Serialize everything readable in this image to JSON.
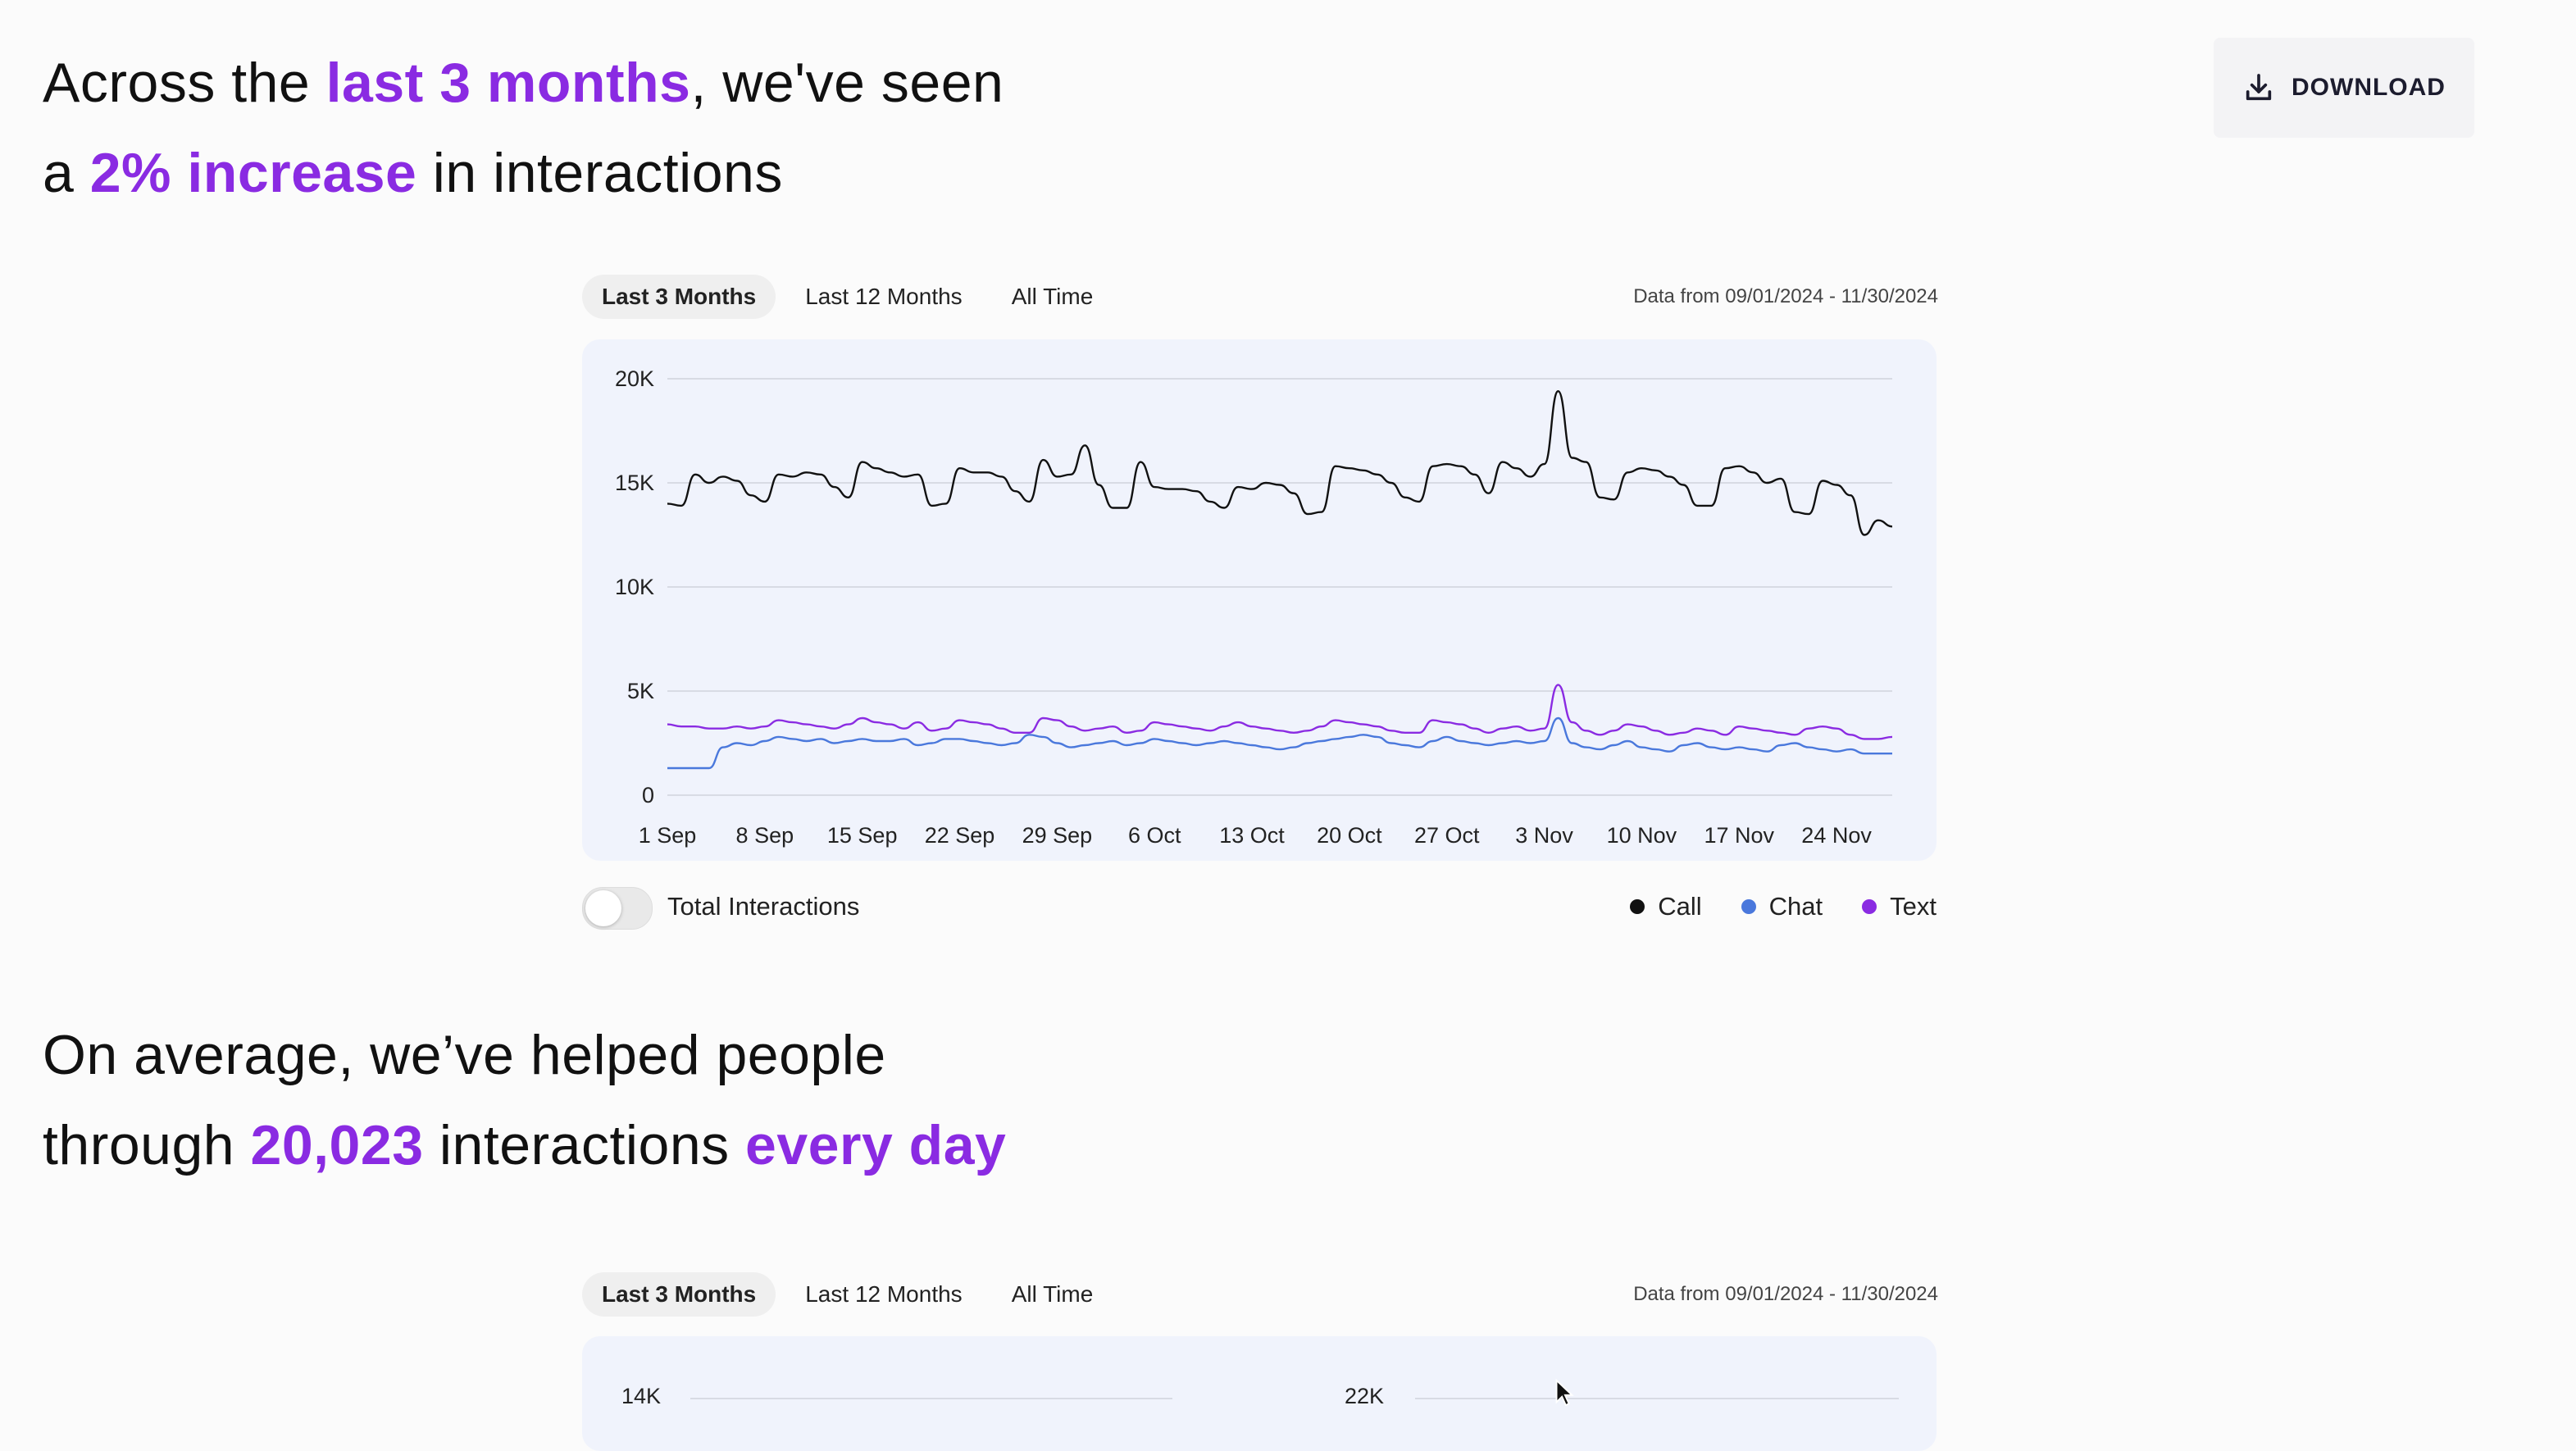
{
  "download": {
    "label": "DOWNLOAD",
    "icon": "download-icon"
  },
  "headline1": {
    "p1": "Across the ",
    "h1": "last 3 months",
    "p2": ", we've seen",
    "p3": "a ",
    "h2": "2% increase",
    "p4": " in interactions"
  },
  "headline2": {
    "p1": "On average, we’ve helped people",
    "p2": "through ",
    "h1": "20,023",
    "p3": " interactions ",
    "h2": "every day"
  },
  "colors": {
    "accent": "#8a2be2",
    "call": "#111111",
    "chat": "#4a78dc",
    "text": "#8a2be2"
  },
  "section1": {
    "tabs": [
      "Last 3 Months",
      "Last 12 Months",
      "All Time"
    ],
    "active_tab": "Last 3 Months",
    "date_range": "Data from 09/01/2024 - 11/30/2024",
    "toggle_label": "Total Interactions",
    "toggle_on": false
  },
  "section2": {
    "tabs": [
      "Last 3 Months",
      "Last 12 Months",
      "All Time"
    ],
    "active_tab": "Last 3 Months",
    "date_range": "Data from 09/01/2024 - 11/30/2024"
  },
  "chart_data": {
    "type": "line",
    "title": "",
    "xlabel": "",
    "ylabel": "",
    "ylim": [
      0,
      20000
    ],
    "y_ticks": [
      "0",
      "5K",
      "10K",
      "15K",
      "20K"
    ],
    "x_tick_labels": [
      "1 Sep",
      "8 Sep",
      "15 Sep",
      "22 Sep",
      "29 Sep",
      "6 Oct",
      "13 Oct",
      "20 Oct",
      "27 Oct",
      "3 Nov",
      "10 Nov",
      "17 Nov",
      "24 Nov"
    ],
    "grid": true,
    "legend_position": "bottom-right",
    "series": [
      {
        "name": "Call",
        "values": [
          14000,
          13900,
          15400,
          15000,
          15300,
          15100,
          14400,
          14100,
          15400,
          15300,
          15500,
          15400,
          14800,
          14300,
          16000,
          15700,
          15500,
          15300,
          15400,
          13900,
          14000,
          15700,
          15500,
          15500,
          15300,
          14600,
          14100,
          16100,
          15300,
          15400,
          16800,
          14900,
          13800,
          13800,
          16000,
          14800,
          14700,
          14700,
          14600,
          14100,
          13800,
          14800,
          14700,
          15000,
          14900,
          14500,
          13500,
          13600,
          15800,
          15700,
          15600,
          15400,
          15000,
          14300,
          14100,
          15800,
          15900,
          15800,
          15400,
          14500,
          16000,
          15700,
          15300,
          15900,
          19400,
          16200,
          16000,
          14300,
          14200,
          15500,
          15700,
          15600,
          15300,
          14900,
          13900,
          13900,
          15700,
          15800,
          15500,
          15000,
          15200,
          13600,
          13500,
          15100,
          14900,
          14400,
          12500,
          13200,
          12900
        ],
        "color": "#111111"
      },
      {
        "name": "Chat",
        "values": [
          1300,
          1300,
          1300,
          1300,
          2300,
          2500,
          2400,
          2600,
          2800,
          2700,
          2600,
          2700,
          2500,
          2600,
          2700,
          2600,
          2600,
          2700,
          2400,
          2500,
          2700,
          2700,
          2600,
          2500,
          2400,
          2500,
          2900,
          2800,
          2500,
          2300,
          2400,
          2500,
          2600,
          2400,
          2500,
          2700,
          2600,
          2500,
          2400,
          2500,
          2600,
          2500,
          2400,
          2300,
          2200,
          2300,
          2500,
          2600,
          2700,
          2800,
          2900,
          2800,
          2500,
          2400,
          2300,
          2600,
          2800,
          2600,
          2500,
          2400,
          2500,
          2600,
          2500,
          2600,
          3700,
          2500,
          2300,
          2200,
          2400,
          2600,
          2300,
          2200,
          2100,
          2400,
          2500,
          2300,
          2200,
          2300,
          2200,
          2100,
          2400,
          2500,
          2300,
          2200,
          2100,
          2200,
          2000,
          2000,
          2000
        ],
        "color": "#4a78dc"
      },
      {
        "name": "Text",
        "values": [
          3400,
          3300,
          3300,
          3200,
          3200,
          3300,
          3200,
          3300,
          3600,
          3500,
          3400,
          3300,
          3200,
          3400,
          3700,
          3500,
          3400,
          3200,
          3500,
          3100,
          3200,
          3600,
          3500,
          3400,
          3200,
          3000,
          3000,
          3700,
          3600,
          3300,
          3100,
          3200,
          3300,
          3000,
          3100,
          3500,
          3400,
          3300,
          3200,
          3100,
          3300,
          3500,
          3300,
          3200,
          3100,
          3000,
          3100,
          3300,
          3600,
          3500,
          3400,
          3300,
          3100,
          3000,
          3000,
          3600,
          3500,
          3400,
          3200,
          3000,
          3200,
          3300,
          3100,
          3200,
          5300,
          3500,
          3100,
          2900,
          3100,
          3400,
          3300,
          3100,
          2900,
          3000,
          3200,
          3100,
          2900,
          3300,
          3200,
          3100,
          3000,
          2900,
          3200,
          3300,
          3200,
          2900,
          2700,
          2700,
          2800
        ],
        "color": "#8a2be2"
      }
    ]
  },
  "chart2_partial": {
    "y_tick_left": "14K",
    "y_tick_right": "22K"
  }
}
